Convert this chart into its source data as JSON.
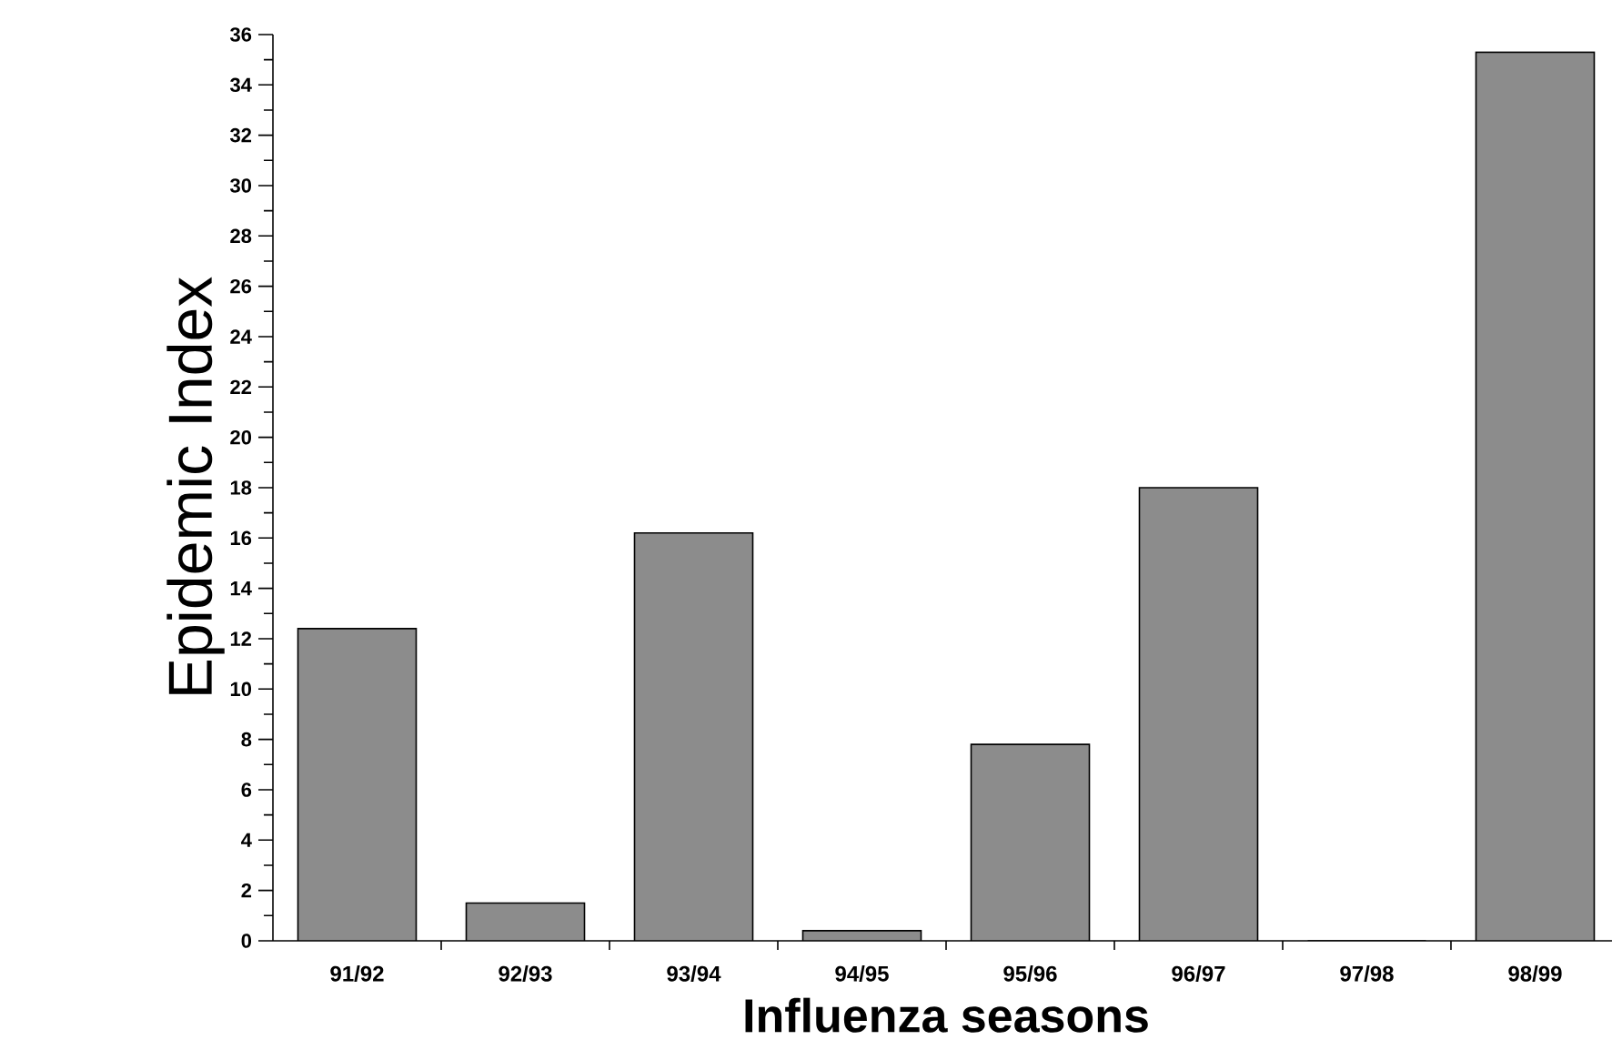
{
  "chart_data": {
    "type": "bar",
    "xlabel": "Influenza   seasons",
    "ylabel": "Epidemic  Index",
    "categories": [
      "91/92",
      "92/93",
      "93/94",
      "94/95",
      "95/96",
      "96/97",
      "97/98",
      "98/99"
    ],
    "values": [
      12.4,
      1.5,
      16.2,
      0.4,
      7.8,
      18,
      0,
      35.3
    ],
    "color": "#8c8c8c",
    "ylim": [
      0,
      36
    ],
    "yticks": [
      0,
      2,
      4,
      6,
      8,
      10,
      12,
      14,
      16,
      18,
      20,
      22,
      24,
      26,
      28,
      30,
      32,
      34,
      36
    ],
    "grid": false
  }
}
